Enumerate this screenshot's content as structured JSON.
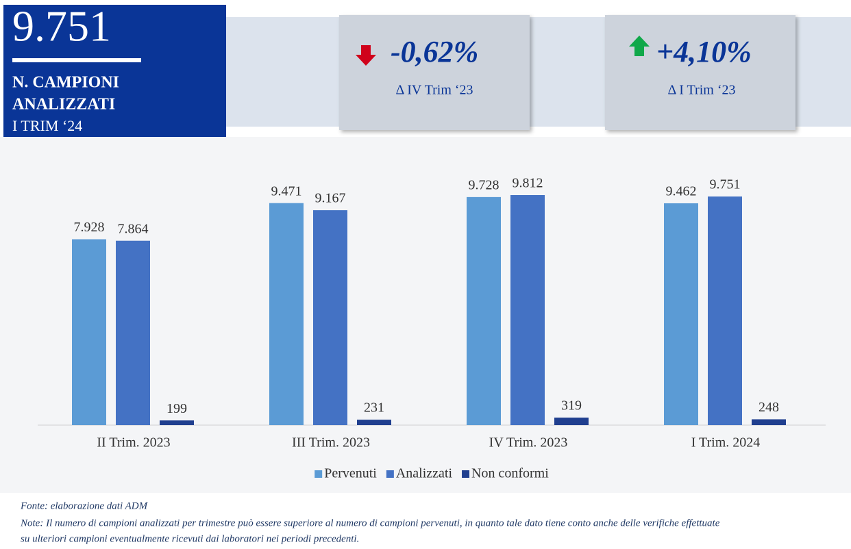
{
  "kpi": {
    "value": "9.751",
    "label_lines": [
      "N. CAMPIONI",
      "ANALIZZATI"
    ],
    "period": "I TRIM ‘24",
    "cards": [
      {
        "change": "-0,62%",
        "reference": "Δ IV Trim ‘23"
      },
      {
        "change": "+4,10%",
        "reference": "Δ I Trim ‘23"
      }
    ]
  },
  "chart_data": {
    "type": "bar",
    "categories": [
      "II Trim. 2023",
      "III Trim. 2023",
      "IV Trim. 2023",
      "I Trim. 2024"
    ],
    "series": [
      {
        "name": "Pervenuti",
        "color": "#5b9bd5",
        "values": [
          7928,
          9471,
          9728,
          9462
        ],
        "value_labels": [
          "7.928",
          "9.471",
          "9.728",
          "9.462"
        ]
      },
      {
        "name": "Analizzati",
        "color": "#4472c4",
        "values": [
          7864,
          9167,
          9812,
          9751
        ],
        "value_labels": [
          "7.864",
          "9.167",
          "9.812",
          "9.751"
        ]
      },
      {
        "name": "Non conformi",
        "color": "#203f8f",
        "values": [
          199,
          231,
          319,
          248
        ],
        "value_labels": [
          "199",
          "231",
          "319",
          "248"
        ]
      }
    ],
    "legend": "bottom"
  },
  "notes": [
    "Fonte: elaborazione dati ADM",
    "Note: Il numero di campioni analizzati per trimestre può essere superiore al numero di campioni pervenuti, in quanto tale dato tiene conto anche delle verifiche effettuate",
    "su ulteriori campioni eventualmente ricevuti dai laboratori nei periodi precedenti."
  ]
}
